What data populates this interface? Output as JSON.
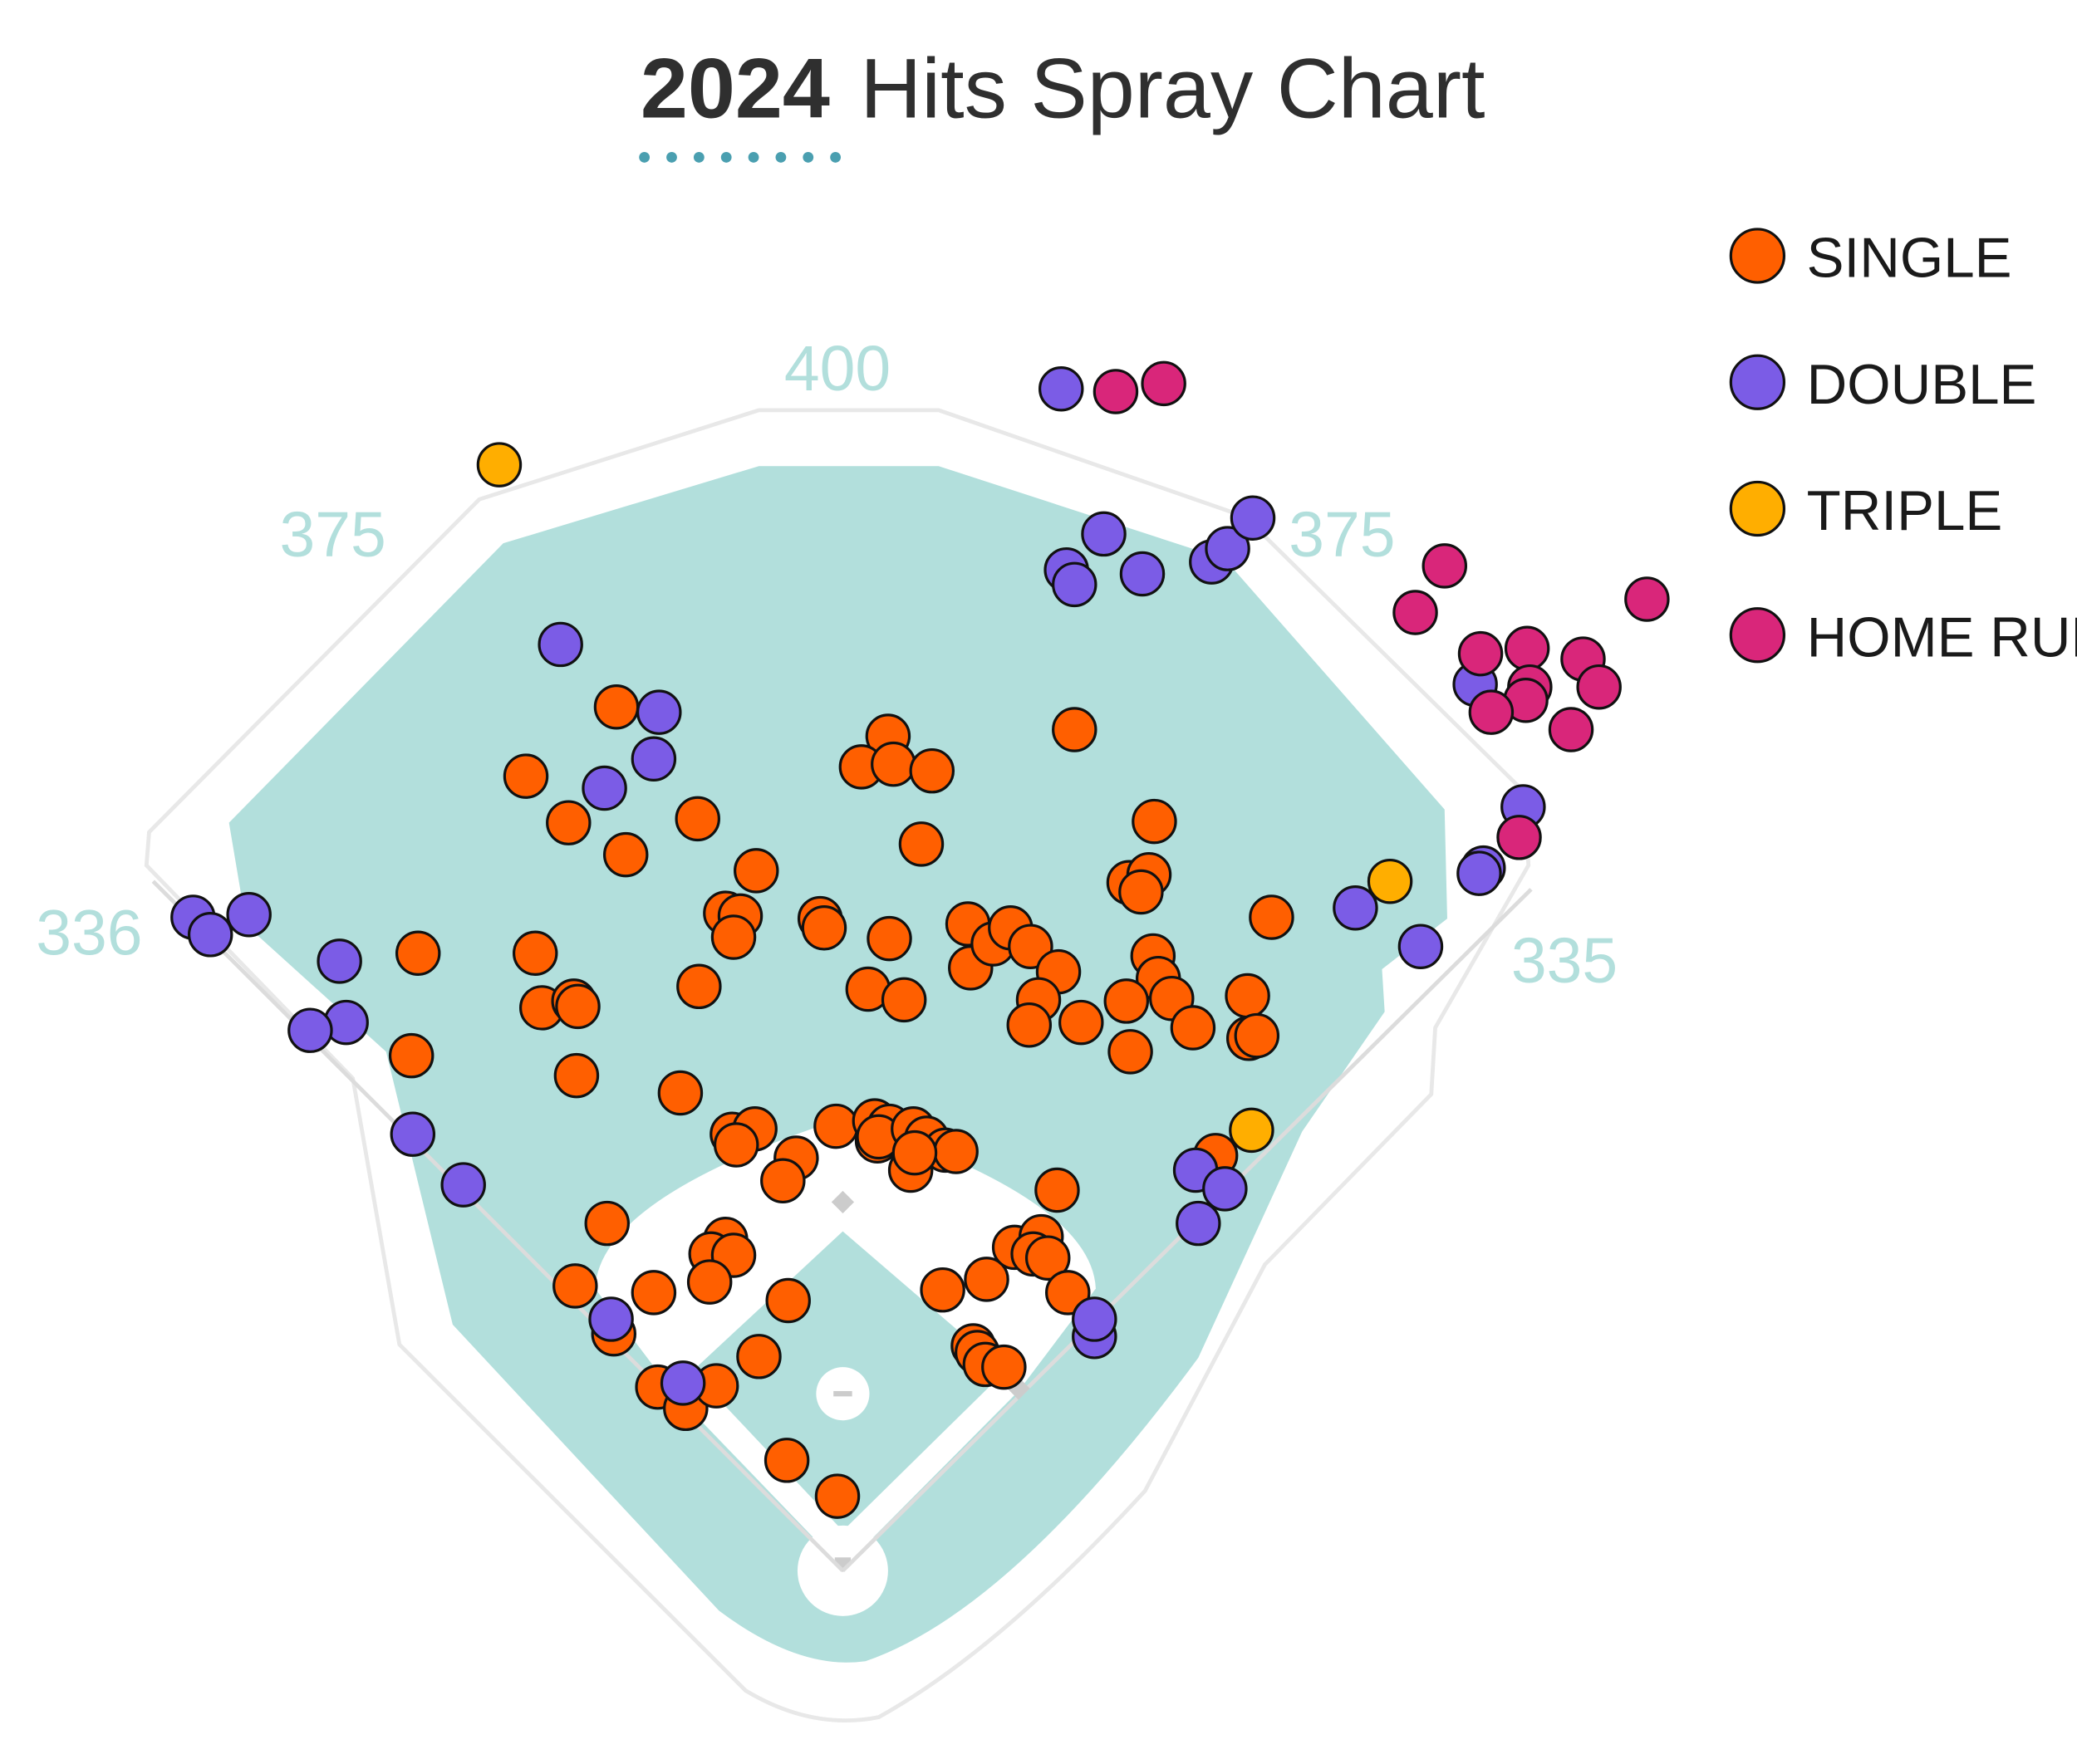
{
  "chart_data": {
    "type": "scatter",
    "title_year": "2024",
    "title_text": "Hits Spray Chart",
    "distance_labels": {
      "lf_line": "336",
      "lf_center": "375",
      "center": "400",
      "rf_center": "375",
      "rf_line": "335"
    },
    "colors": {
      "field": "#b2dfdc",
      "wall": "#e6e6e6",
      "title_underline": "#4a9fb0",
      "Single": "#ff5f00",
      "Double": "#7b5ce6",
      "Triple": "#ffae00",
      "Home Run": "#d9267a"
    },
    "legend": [
      {
        "name": "Single",
        "label": "SINGLE"
      },
      {
        "name": "Double",
        "label": "DOUBLE"
      },
      {
        "name": "Triple",
        "label": "TRIPLE"
      },
      {
        "name": "Home Run",
        "label": "HOME RUN"
      }
    ],
    "xlim": [
      0,
      1560
    ],
    "ylim": [
      0,
      1325
    ],
    "series": [
      {
        "name": "Single",
        "points": [
          [
            463,
            531
          ],
          [
            395,
            583
          ],
          [
            427,
            618
          ],
          [
            470,
            642
          ],
          [
            524,
            615
          ],
          [
            568,
            654
          ],
          [
            545,
            686
          ],
          [
            556,
            688
          ],
          [
            551,
            704
          ],
          [
            616,
            690
          ],
          [
            619,
            697
          ],
          [
            667,
            553
          ],
          [
            647,
            576
          ],
          [
            671,
            574
          ],
          [
            700,
            579
          ],
          [
            692,
            634
          ],
          [
            668,
            705
          ],
          [
            652,
            743
          ],
          [
            679,
            751
          ],
          [
            727,
            694
          ],
          [
            729,
            727
          ],
          [
            746,
            709
          ],
          [
            759,
            697
          ],
          [
            774,
            711
          ],
          [
            795,
            730
          ],
          [
            780,
            751
          ],
          [
            773,
            770
          ],
          [
            812,
            768
          ],
          [
            807,
            548
          ],
          [
            867,
            617
          ],
          [
            848,
            663
          ],
          [
            863,
            657
          ],
          [
            857,
            670
          ],
          [
            866,
            718
          ],
          [
            870,
            735
          ],
          [
            880,
            750
          ],
          [
            846,
            752
          ],
          [
            896,
            772
          ],
          [
            849,
            790
          ],
          [
            937,
            748
          ],
          [
            938,
            780
          ],
          [
            944,
            778
          ],
          [
            955,
            689
          ],
          [
            314,
            716
          ],
          [
            402,
            716
          ],
          [
            407,
            757
          ],
          [
            431,
            752
          ],
          [
            434,
            756
          ],
          [
            309,
            793
          ],
          [
            433,
            808
          ],
          [
            525,
            741
          ],
          [
            511,
            821
          ],
          [
            550,
            852
          ],
          [
            567,
            848
          ],
          [
            553,
            860
          ],
          [
            598,
            870
          ],
          [
            588,
            887
          ],
          [
            628,
            846
          ],
          [
            657,
            842
          ],
          [
            668,
            846
          ],
          [
            659,
            857
          ],
          [
            660,
            854
          ],
          [
            686,
            848
          ],
          [
            696,
            855
          ],
          [
            710,
            864
          ],
          [
            718,
            865
          ],
          [
            684,
            879
          ],
          [
            687,
            866
          ],
          [
            794,
            894
          ],
          [
            913,
            868
          ],
          [
            456,
            919
          ],
          [
            545,
            931
          ],
          [
            534,
            942
          ],
          [
            551,
            943
          ],
          [
            533,
            963
          ],
          [
            432,
            966
          ],
          [
            491,
            971
          ],
          [
            592,
            977
          ],
          [
            461,
            1002
          ],
          [
            570,
            1019
          ],
          [
            708,
            969
          ],
          [
            741,
            961
          ],
          [
            762,
            937
          ],
          [
            782,
            929
          ],
          [
            776,
            942
          ],
          [
            787,
            945
          ],
          [
            802,
            971
          ],
          [
            731,
            1011
          ],
          [
            734,
            1016
          ],
          [
            740,
            1025
          ],
          [
            754,
            1027
          ],
          [
            494,
            1042
          ],
          [
            515,
            1058
          ],
          [
            538,
            1041
          ],
          [
            591,
            1097
          ],
          [
            629,
            1124
          ]
        ]
      },
      {
        "name": "Double",
        "points": [
          [
            797,
            292
          ],
          [
            829,
            401
          ],
          [
            801,
            428
          ],
          [
            807,
            439
          ],
          [
            858,
            431
          ],
          [
            910,
            422
          ],
          [
            922,
            412
          ],
          [
            941,
            389
          ],
          [
            421,
            484
          ],
          [
            495,
            535
          ],
          [
            491,
            570
          ],
          [
            454,
            592
          ],
          [
            145,
            689
          ],
          [
            158,
            702
          ],
          [
            187,
            687
          ],
          [
            255,
            722
          ],
          [
            260,
            768
          ],
          [
            233,
            774
          ],
          [
            310,
            852
          ],
          [
            348,
            890
          ],
          [
            1108,
            514
          ],
          [
            1144,
            606
          ],
          [
            1114,
            652
          ],
          [
            1111,
            656
          ],
          [
            1018,
            682
          ],
          [
            1067,
            711
          ],
          [
            898,
            879
          ],
          [
            920,
            893
          ],
          [
            900,
            919
          ],
          [
            822,
            1004
          ],
          [
            822,
            991
          ],
          [
            459,
            991
          ],
          [
            513,
            1039
          ]
        ]
      },
      {
        "name": "Triple",
        "points": [
          [
            375,
            349
          ],
          [
            1044,
            662
          ],
          [
            940,
            849
          ]
        ]
      },
      {
        "name": "Home Run",
        "points": [
          [
            838,
            294
          ],
          [
            874,
            288
          ],
          [
            1085,
            425
          ],
          [
            1063,
            460
          ],
          [
            1237,
            450
          ],
          [
            1112,
            491
          ],
          [
            1147,
            487
          ],
          [
            1189,
            495
          ],
          [
            1149,
            516
          ],
          [
            1146,
            526
          ],
          [
            1120,
            535
          ],
          [
            1201,
            516
          ],
          [
            1180,
            548
          ],
          [
            1141,
            629
          ]
        ]
      }
    ]
  }
}
